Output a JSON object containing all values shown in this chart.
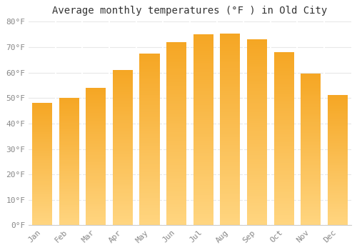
{
  "title": "Average monthly temperatures (°F ) in Old City",
  "months": [
    "Jan",
    "Feb",
    "Mar",
    "Apr",
    "May",
    "Jun",
    "Jul",
    "Aug",
    "Sep",
    "Oct",
    "Nov",
    "Dec"
  ],
  "values": [
    48.2,
    50.2,
    54.0,
    61.0,
    67.5,
    72.0,
    75.2,
    75.3,
    73.0,
    68.0,
    59.5,
    51.3
  ],
  "ylim": [
    0,
    80
  ],
  "yticks": [
    0,
    10,
    20,
    30,
    40,
    50,
    60,
    70,
    80
  ],
  "ytick_labels": [
    "0°F",
    "10°F",
    "20°F",
    "30°F",
    "40°F",
    "50°F",
    "60°F",
    "70°F",
    "80°F"
  ],
  "background_color": "#ffffff",
  "grid_color": "#e8e8e8",
  "bar_color_dark": "#F5A623",
  "bar_color_light": "#FFD580",
  "title_fontsize": 10,
  "tick_fontsize": 8,
  "tick_color": "#888888",
  "bar_width": 0.75
}
